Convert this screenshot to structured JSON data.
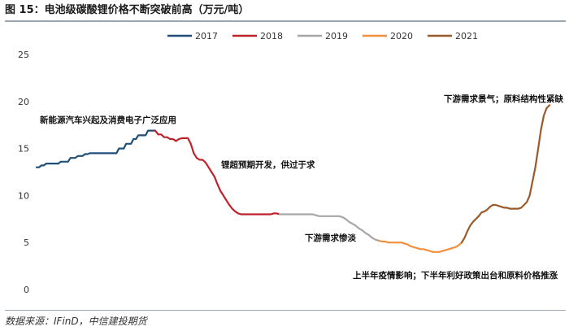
{
  "figure": {
    "title": "图 15：电池级碳酸锂价格不断突破前高（万元/吨）",
    "source": "数据来源：IFinD，中信建投期货"
  },
  "chart_data": {
    "type": "line",
    "title": "",
    "xlabel": "",
    "ylabel": "",
    "ylim": [
      0,
      25
    ],
    "y_ticks": [
      0,
      5,
      10,
      15,
      20,
      25
    ],
    "grid": false,
    "legend_position": "top-center",
    "series": [
      {
        "name": "2017",
        "color": "#1f4e79",
        "values": [
          13.0,
          13.0,
          13.2,
          13.2,
          13.4,
          13.4,
          13.4,
          13.4,
          13.4,
          13.4,
          13.6,
          13.6,
          13.6,
          13.6,
          14.0,
          14.0,
          14.0,
          14.2,
          14.2,
          14.2,
          14.4,
          14.4,
          14.5,
          14.5,
          14.5,
          14.5,
          14.5,
          14.5,
          14.5,
          14.5,
          14.5,
          14.5,
          14.5,
          14.5,
          15.0,
          15.0,
          15.0,
          15.5,
          15.5,
          15.5,
          16.0,
          16.0,
          16.4,
          16.4,
          16.4,
          16.4,
          16.9,
          16.9,
          16.9,
          16.9
        ]
      },
      {
        "name": "2018",
        "color": "#c0222c",
        "values": [
          16.9,
          16.5,
          16.5,
          16.2,
          16.2,
          16.0,
          16.0,
          15.8,
          16.0,
          16.1,
          16.1,
          16.1,
          15.5,
          14.5,
          14.0,
          13.8,
          13.8,
          13.5,
          13.0,
          12.5,
          12.0,
          11.2,
          10.5,
          10.0,
          9.5,
          9.0,
          8.6,
          8.3,
          8.1,
          8.0,
          8.0,
          8.0,
          8.0,
          8.0,
          8.0,
          8.0,
          8.0,
          8.0,
          8.0,
          8.0,
          8.1,
          8.1,
          8.0
        ]
      },
      {
        "name": "2019",
        "color": "#a6a6a6",
        "values": [
          8.0,
          8.0,
          8.0,
          8.0,
          8.0,
          8.0,
          8.0,
          8.0,
          8.0,
          8.0,
          8.0,
          7.9,
          7.8,
          7.8,
          7.8,
          7.8,
          7.8,
          7.8,
          7.8,
          7.7,
          7.5,
          7.2,
          7.0,
          6.8,
          6.5,
          6.3,
          6.0,
          5.8,
          5.5,
          5.3,
          5.2
        ]
      },
      {
        "name": "2020",
        "color": "#f28e3c",
        "values": [
          5.2,
          5.1,
          5.1,
          5.0,
          5.0,
          5.0,
          5.0,
          5.0,
          4.9,
          4.8,
          4.6,
          4.5,
          4.4,
          4.3,
          4.3,
          4.2,
          4.1,
          4.0,
          4.0,
          4.0,
          4.1,
          4.2,
          4.3,
          4.4,
          4.5,
          4.7,
          5.0
        ]
      },
      {
        "name": "2021",
        "color": "#9b5a2c",
        "values": [
          5.0,
          5.5,
          6.2,
          6.8,
          7.2,
          7.5,
          7.8,
          8.2,
          8.3,
          8.5,
          8.8,
          9.0,
          9.0,
          8.9,
          8.8,
          8.7,
          8.7,
          8.6,
          8.6,
          8.6,
          8.6,
          8.7,
          9.0,
          9.3,
          10.0,
          11.5,
          13.0,
          15.0,
          17.0,
          18.5,
          19.3,
          19.6
        ]
      }
    ],
    "annotations": [
      {
        "id": "emerging",
        "text": "新能源汽车兴起及消费电子广泛应用"
      },
      {
        "id": "break",
        "text": "锂超预期开发，供过于求"
      },
      {
        "id": "weak",
        "text": "下游需求惨淡"
      },
      {
        "id": "policy",
        "text": "上半年疫情影响；下半年利好政策出台和原料价格推涨"
      },
      {
        "id": "boom",
        "text": "下游需求景气；原料结构性紧缺"
      }
    ]
  }
}
